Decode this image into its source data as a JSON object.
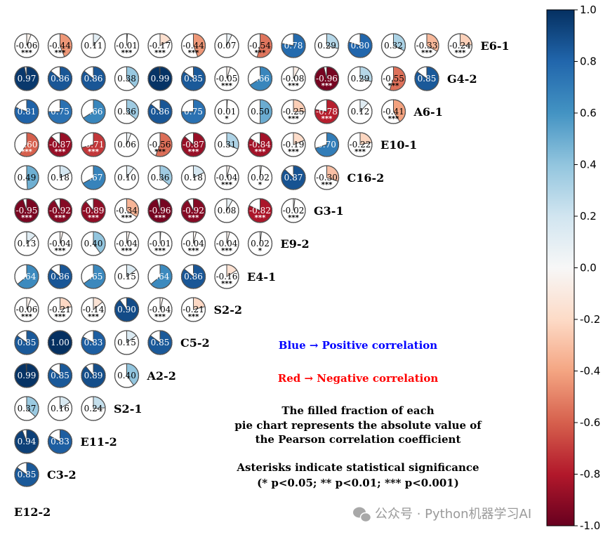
{
  "chart_data": {
    "type": "pie-correlation-matrix",
    "variables": [
      "E6-1",
      "G4-2",
      "A6-1",
      "E10-1",
      "C16-2",
      "G3-1",
      "E9-2",
      "E4-1",
      "S2-2",
      "C5-2",
      "A2-2",
      "S2-1",
      "E11-2",
      "C3-2",
      "E12-2"
    ],
    "rows": [
      {
        "label": "E6-1",
        "values": [
          -0.06,
          -0.44,
          0.11,
          -0.01,
          -0.17,
          -0.44,
          0.07,
          -0.54,
          0.78,
          0.29,
          0.8,
          0.32,
          -0.33,
          -0.24
        ],
        "stars": [
          "***",
          "***",
          "",
          "***",
          "***",
          "***",
          "",
          "***",
          "",
          "",
          "",
          "",
          "***",
          "***"
        ]
      },
      {
        "label": "G4-2",
        "values": [
          0.97,
          0.86,
          0.86,
          0.38,
          0.99,
          0.85,
          -0.05,
          0.66,
          -0.08,
          -0.96,
          0.29,
          -0.55,
          0.85
        ],
        "stars": [
          "",
          "",
          "",
          "",
          "",
          "",
          "***",
          "",
          "***",
          "***",
          "",
          "***",
          ""
        ]
      },
      {
        "label": "A6-1",
        "values": [
          0.81,
          0.75,
          0.66,
          0.36,
          0.86,
          0.75,
          0.01,
          0.5,
          -0.25,
          -0.78,
          0.12,
          -0.41
        ],
        "stars": [
          "",
          "",
          "",
          "",
          "",
          "",
          "*",
          "",
          "***",
          "***",
          "",
          "***"
        ]
      },
      {
        "label": "E10-1",
        "values": [
          -0.6,
          -0.87,
          -0.71,
          0.06,
          -0.56,
          -0.87,
          0.31,
          -0.84,
          -0.19,
          0.7,
          -0.22
        ],
        "stars": [
          "***",
          "***",
          "***",
          "",
          "***",
          "***",
          "",
          "***",
          "***",
          "",
          "***"
        ]
      },
      {
        "label": "C16-2",
        "values": [
          0.49,
          0.18,
          0.67,
          0.1,
          0.36,
          0.18,
          -0.04,
          0.02,
          0.87,
          -0.3
        ],
        "stars": [
          "",
          "",
          "",
          "",
          "",
          "",
          "***",
          "*",
          "",
          "***"
        ]
      },
      {
        "label": "G3-1",
        "values": [
          -0.95,
          -0.92,
          -0.89,
          -0.34,
          -0.96,
          -0.92,
          0.08,
          -0.82,
          -0.02
        ],
        "stars": [
          "***",
          "***",
          "***",
          "***",
          "***",
          "***",
          "",
          "***",
          "***"
        ]
      },
      {
        "label": "E9-2",
        "values": [
          0.13,
          -0.04,
          0.4,
          -0.04,
          -0.01,
          -0.04,
          -0.04,
          0.02
        ],
        "stars": [
          "",
          "***",
          "",
          "***",
          "***",
          "***",
          "***",
          "*"
        ]
      },
      {
        "label": "E4-1",
        "values": [
          0.64,
          0.86,
          0.65,
          0.15,
          0.64,
          0.86,
          -0.16
        ],
        "stars": [
          "",
          "",
          "",
          "",
          "",
          "",
          "***"
        ]
      },
      {
        "label": "S2-2",
        "values": [
          -0.06,
          -0.21,
          -0.14,
          0.9,
          -0.04,
          -0.21
        ],
        "stars": [
          "***",
          "***",
          "***",
          "",
          "***",
          "***"
        ]
      },
      {
        "label": "C5-2",
        "values": [
          0.85,
          1.0,
          0.83,
          0.15,
          0.85
        ],
        "stars": [
          "",
          "",
          "",
          "",
          ""
        ]
      },
      {
        "label": "A2-2",
        "values": [
          0.99,
          0.85,
          0.89,
          0.4
        ],
        "stars": [
          "",
          "",
          "",
          ""
        ]
      },
      {
        "label": "S2-1",
        "values": [
          0.37,
          0.16,
          0.24
        ],
        "stars": [
          "",
          "",
          ""
        ]
      },
      {
        "label": "E11-2",
        "values": [
          0.94,
          0.83
        ],
        "stars": [
          "",
          ""
        ]
      },
      {
        "label": "C3-2",
        "values": [
          0.85
        ],
        "stars": [
          ""
        ]
      },
      {
        "label": "E12-2",
        "values": [],
        "stars": []
      }
    ],
    "colorbar": {
      "ticks": [
        "1.0",
        "0.8",
        "0.6",
        "0.4",
        "0.2",
        "0.0",
        "-0.2",
        "-0.4",
        "-0.6",
        "-0.8",
        "-1.0"
      ],
      "range": [
        -1.0,
        1.0
      ],
      "colormap": "RdBu"
    },
    "annotations": [
      {
        "text": "Blue → Positive correlation",
        "color": "#0000ff"
      },
      {
        "text": "Red → Negative correlation",
        "color": "#ff0000"
      },
      {
        "text": "The filled fraction of each",
        "color": "#000000"
      },
      {
        "text": "pie chart represents the absolute value of",
        "color": "#000000"
      },
      {
        "text": "the Pearson correlation coefficient",
        "color": "#000000"
      },
      {
        "text": "Asterisks indicate statistical significance",
        "color": "#000000"
      },
      {
        "text": "(* p<0.05; ** p<0.01; *** p<0.001)",
        "color": "#000000"
      }
    ]
  },
  "watermark": "公众号 · Python机器学习AI"
}
